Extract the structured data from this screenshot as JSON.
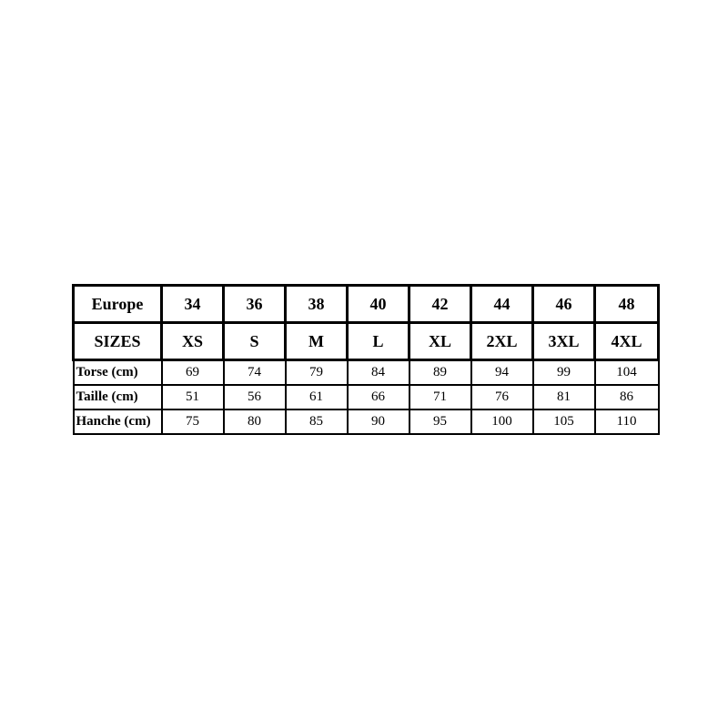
{
  "size_chart": {
    "header_rows": [
      {
        "label": "Europe",
        "values": [
          "34",
          "36",
          "38",
          "40",
          "42",
          "44",
          "46",
          "48"
        ]
      },
      {
        "label": "SIZES",
        "values": [
          "XS",
          "S",
          "M",
          "L",
          "XL",
          "2XL",
          "3XL",
          "4XL"
        ]
      }
    ],
    "measure_rows": [
      {
        "label": "Torse (cm)",
        "values": [
          "69",
          "74",
          "79",
          "84",
          "89",
          "94",
          "99",
          "104"
        ]
      },
      {
        "label": "Taille (cm)",
        "values": [
          "51",
          "56",
          "61",
          "66",
          "71",
          "76",
          "81",
          "86"
        ]
      },
      {
        "label": "Hanche (cm)",
        "values": [
          "75",
          "80",
          "85",
          "90",
          "95",
          "100",
          "105",
          "110"
        ]
      }
    ]
  }
}
